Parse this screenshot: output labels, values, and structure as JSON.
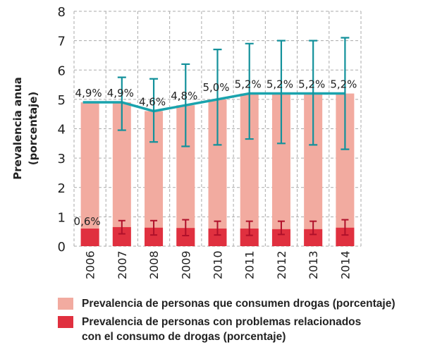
{
  "chart_data": {
    "type": "bar",
    "ylabel": "Prevalencia anua (porcentaje)",
    "ylim": [
      0,
      8
    ],
    "yticks": [
      "0",
      "1",
      "2",
      "3",
      "4",
      "5",
      "6",
      "7",
      "8"
    ],
    "grid": true,
    "legend_position": "bottom",
    "categories": [
      "2006",
      "2007",
      "2008",
      "2009",
      "2010",
      "2011",
      "2012",
      "2013",
      "2014"
    ],
    "series": [
      {
        "name": "Prevalencia de personas que consumen drogas (porcentaje)",
        "type": "bar",
        "color": "#f2aba0",
        "values": [
          4.9,
          4.9,
          4.6,
          4.8,
          5.0,
          5.2,
          5.2,
          5.2,
          5.2
        ],
        "line_color": "#1aa3ad",
        "error_low": [
          null,
          3.95,
          3.55,
          3.4,
          3.45,
          3.65,
          3.5,
          3.45,
          3.3
        ],
        "error_high": [
          null,
          5.75,
          5.7,
          6.2,
          6.7,
          6.9,
          7.0,
          7.0,
          7.1
        ],
        "labels": [
          "4,9%",
          "4,9%",
          "4,6%",
          "4,8%",
          "5,0%",
          "5,2%",
          "5,2%",
          "5,2%",
          "5,2%"
        ]
      },
      {
        "name": "Prevalencia de personas con problemas relacionados con el consumo de drogas (porcentaje)",
        "type": "bar",
        "color": "#e0303f",
        "values": [
          0.6,
          0.65,
          0.63,
          0.62,
          0.6,
          0.6,
          0.58,
          0.58,
          0.63
        ],
        "error_low": [
          null,
          0.42,
          0.38,
          0.36,
          0.38,
          0.37,
          0.4,
          0.4,
          0.38
        ],
        "error_high": [
          null,
          0.87,
          0.87,
          0.9,
          0.85,
          0.85,
          0.85,
          0.85,
          0.9
        ],
        "labels": [
          "0,6%"
        ]
      }
    ]
  },
  "legend": {
    "line1": "Prevalencia de personas que consumen drogas (porcentaje)",
    "line2a": "Prevalencia de personas con problemas relacionados",
    "line2b": "con el consumo de drogas (porcentaje)"
  }
}
